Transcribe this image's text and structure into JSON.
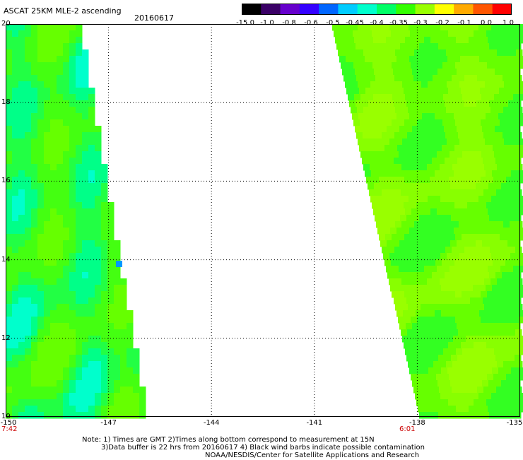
{
  "header": {
    "title": "ASCAT 25KM MLE-2 ascending",
    "date": "20160617"
  },
  "colorbar": {
    "labels": [
      "-15.0",
      "-1.0",
      "-0.8",
      "-0.6",
      "-0.5",
      "-0.45",
      "-0.4",
      "-0.35",
      "-0.3",
      "-0.2",
      "-0.1",
      "0.0",
      "1.0"
    ],
    "colors": [
      "#000000",
      "#3a0066",
      "#6600cc",
      "#3300ff",
      "#0066ff",
      "#00ccff",
      "#00ffcc",
      "#00ff66",
      "#33ff00",
      "#99ff00",
      "#ffff00",
      "#ffaa00",
      "#ff5500",
      "#ff0000"
    ]
  },
  "map": {
    "lat_labels": [
      "20",
      "18",
      "16",
      "14",
      "12",
      "10"
    ],
    "lon_labels": [
      "-150",
      "-147",
      "-144",
      "-141",
      "-138",
      "-135"
    ],
    "time_left": "7:42",
    "time_right": "6:01"
  },
  "footer": {
    "line1": "Note: 1) Times are GMT 2)Times along bottom correspond to measurement at 15N",
    "line2": "3)Data buffer is 22 hrs from 20160617 4) Black wind barbs indicate possible contamination",
    "line3": "NOAA/NESDIS/Center for Satellite Applications and Research"
  }
}
